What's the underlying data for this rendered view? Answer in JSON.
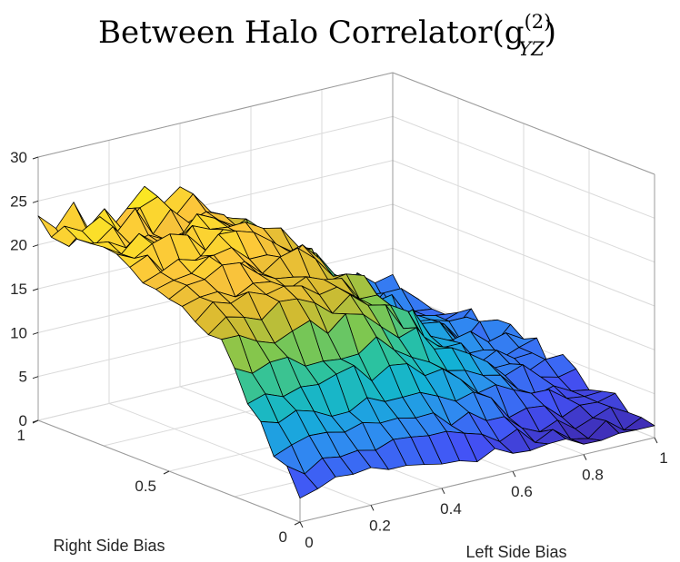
{
  "chart_data": {
    "type": "surface",
    "title": {
      "main": "Between Halo Correlator(g",
      "superscript": "(2)",
      "subscript": "YZ",
      "closing": ")"
    },
    "xlabel": "Left Side Bias",
    "ylabel": "Right Side Bias",
    "zlabel": "",
    "xlim": [
      0,
      1
    ],
    "ylim": [
      0,
      1
    ],
    "zlim": [
      0,
      30
    ],
    "x_ticks": [
      0,
      0.2,
      0.4,
      0.6,
      0.8,
      1
    ],
    "x_tick_labels": [
      "0",
      "0.2",
      "0.4",
      "0.6",
      "0.8",
      "1"
    ],
    "y_ticks": [
      0,
      0.5,
      1
    ],
    "y_tick_labels": [
      "0",
      "0.5",
      "1"
    ],
    "z_ticks": [
      0,
      5,
      10,
      15,
      20,
      25,
      30
    ],
    "z_tick_labels": [
      "0",
      "5",
      "10",
      "15",
      "20",
      "25",
      "30"
    ],
    "grid": true,
    "colormap": "parula",
    "colormap_stops": [
      "#3e26a8",
      "#4352f6",
      "#2e8df0",
      "#12b2d4",
      "#2bc2a0",
      "#81c74d",
      "#d7ba2f",
      "#fcc43c",
      "#f9fb15"
    ],
    "edge_color": "#000000",
    "grid_points": 21,
    "surface_trend": "z rises from about 0 at x=0,y=0 toward about 21-25 at x=0,y=1; z falls toward about 4-6 as x approaches 1 at high y; noisy jagged surface"
  }
}
